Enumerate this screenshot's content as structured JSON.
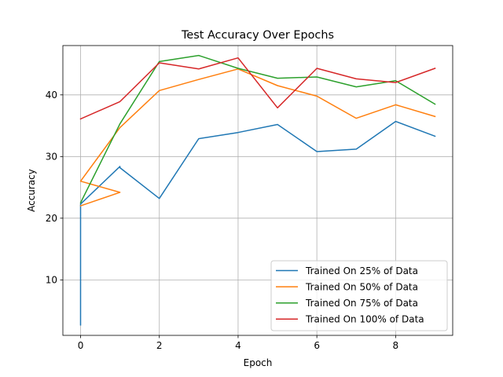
{
  "chart_data": {
    "type": "line",
    "title": "Test Accuracy Over Epochs",
    "xlabel": "Epoch",
    "ylabel": "Accuracy",
    "xlim": [
      -0.45,
      9.45
    ],
    "ylim": [
      1.0,
      48.0
    ],
    "xticks": [
      0,
      2,
      4,
      6,
      8
    ],
    "yticks": [
      10,
      20,
      30,
      40
    ],
    "grid": true,
    "legend_position": "lower-right",
    "series": [
      {
        "name": "Trained On 25% of Data",
        "color": "#1f77b4",
        "points": [
          [
            0,
            2.7
          ],
          [
            0,
            18.2
          ],
          [
            0,
            22.3
          ],
          [
            1,
            28.4
          ],
          [
            1,
            28.2
          ],
          [
            2,
            23.2
          ],
          [
            3,
            32.9
          ],
          [
            4,
            33.9
          ],
          [
            5,
            35.2
          ],
          [
            6,
            30.8
          ],
          [
            7,
            31.2
          ],
          [
            8,
            35.7
          ],
          [
            9,
            33.3
          ]
        ]
      },
      {
        "name": "Trained On 50% of Data",
        "color": "#ff7f0e",
        "points": [
          [
            0,
            22.0
          ],
          [
            1,
            24.2
          ],
          [
            0,
            26.0
          ],
          [
            1,
            34.7
          ],
          [
            2,
            40.7
          ],
          [
            3,
            42.5
          ],
          [
            4,
            44.2
          ],
          [
            5,
            41.5
          ],
          [
            6,
            39.8
          ],
          [
            7,
            36.2
          ],
          [
            8,
            38.4
          ],
          [
            9,
            36.5
          ]
        ]
      },
      {
        "name": "Trained On 75% of Data",
        "color": "#2ca02c",
        "points": [
          [
            0,
            22.5
          ],
          [
            1,
            35.3
          ],
          [
            2,
            45.4
          ],
          [
            3,
            46.4
          ],
          [
            4,
            44.3
          ],
          [
            5,
            42.7
          ],
          [
            6,
            42.9
          ],
          [
            7,
            41.3
          ],
          [
            8,
            42.3
          ],
          [
            9,
            38.5
          ]
        ]
      },
      {
        "name": "Trained On 100% of Data",
        "color": "#d62728",
        "points": [
          [
            0,
            36.1
          ],
          [
            1,
            38.9
          ],
          [
            2,
            45.2
          ],
          [
            3,
            44.2
          ],
          [
            4,
            46.0
          ],
          [
            5,
            37.9
          ],
          [
            6,
            44.3
          ],
          [
            7,
            42.6
          ],
          [
            8,
            42.0
          ],
          [
            9,
            44.3
          ]
        ]
      }
    ]
  }
}
